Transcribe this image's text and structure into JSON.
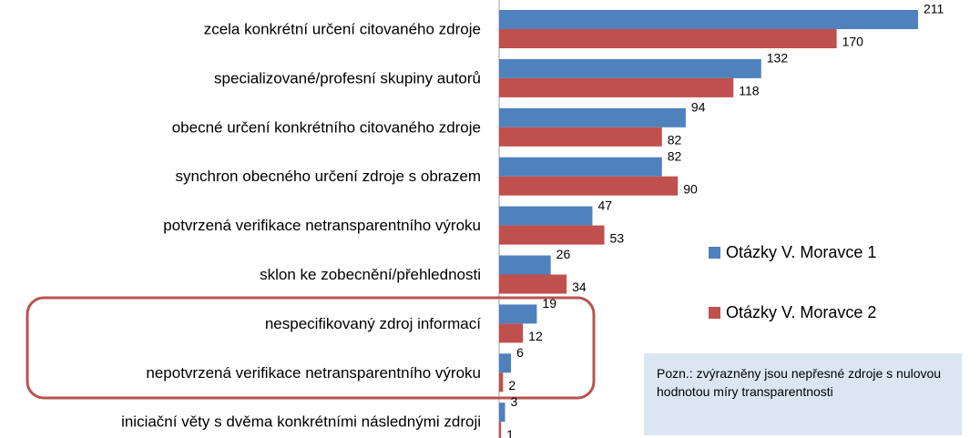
{
  "chart_data": {
    "type": "hbar",
    "categories": [
      "zcela konkrétní určení citovaného zdroje",
      "specializované/profesní skupiny autorů",
      "obecné určení konkrétního citovaného zdroje",
      "synchron obecného určení zdroje s obrazem",
      "potvrzená verifikace netransparentního výroku",
      "sklon ke zobecnění/přehlednosti",
      "nespecifikovaný zdroj informací",
      "nepotvrzená verifikace netransparentního výroku",
      "iniciační věty s dvěma konkrétními následnými zdroji"
    ],
    "series": [
      {
        "name": "Otázky V. Moravce 1",
        "color": "#4f81bd",
        "values": [
          211,
          132,
          94,
          82,
          47,
          26,
          19,
          6,
          3
        ]
      },
      {
        "name": "Otázky V. Moravce 2",
        "color": "#c0504d",
        "values": [
          170,
          118,
          82,
          90,
          53,
          34,
          12,
          2,
          1
        ]
      }
    ],
    "xlim": [
      0,
      211
    ],
    "legend": "right",
    "annotation": "Pozn.: zvýrazněny jsou nepřesné zdroje s nulovou hodnotou míry transparentnosti"
  }
}
